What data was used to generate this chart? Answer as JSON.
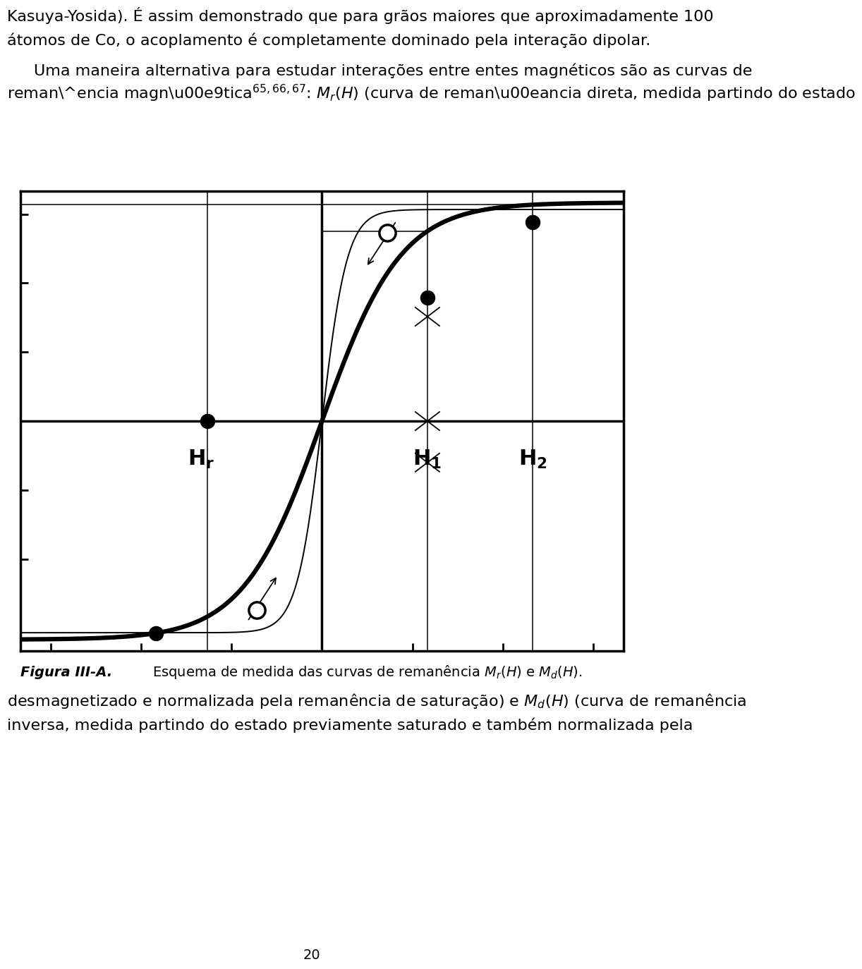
{
  "bg_color": "#ffffff",
  "fig_width": 9.6,
  "fig_height": 14.18,
  "xlim": [
    -10,
    10
  ],
  "ylim": [
    -10,
    10
  ],
  "hr_x": -3.8,
  "h1_x": 3.5,
  "h2_x": 7.0,
  "main_lw": 4.5,
  "thin_lw": 1.4,
  "ref_lw": 1.1,
  "dot_size": 160,
  "open_size": 200,
  "label_fontsize": 22,
  "caption_fontsize": 14,
  "body_fontsize": 16,
  "page_num": "20",
  "text_top1": "Kasuya-Yosida). É assim demonstrado que para grãos maiores que aproximadamente 100",
  "text_top2": "átomos de Co, o acoplamento é completamente dominado pela interação dipolar.",
  "text_top3": "Uma maneira alternativa para estudar interações entre entes magnéticos são as curvas de",
  "text_bottom1": "desmagnetizado e normalizada pela remanência de saturação) e $M_d(H)$ (curva de remanência",
  "text_bottom2": "inversa, medida partindo do estado previamente saturado e também normalizada pela",
  "caption_bold": "Figura III-A.",
  "caption_rest": "Esquema de medida das curvas de remanência $M_r(H)$ e $M_d(H)$."
}
